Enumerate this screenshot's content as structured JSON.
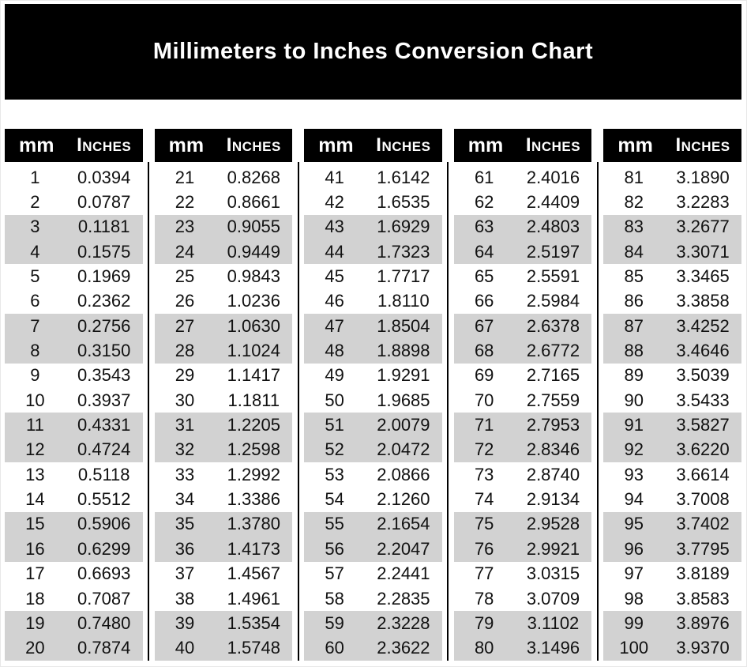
{
  "title": "Millimeters to Inches Conversion Chart",
  "header_labels": {
    "mm": "mm",
    "inches": "Inches"
  },
  "colors": {
    "banner_bg": "#000000",
    "banner_text": "#ffffff",
    "header_bg": "#000000",
    "header_text": "#ffffff",
    "stripe": "#d2d2d2",
    "divider": "#000000",
    "page_bg": "#ffffff",
    "text": "#111111"
  },
  "chart_data": {
    "type": "table",
    "title": "Millimeters to Inches Conversion Chart",
    "columns": [
      "mm",
      "Inches"
    ],
    "stripe_pattern": "rows grouped in pairs, every second pair shaded gray",
    "tables": [
      {
        "mm": [
          1,
          2,
          3,
          4,
          5,
          6,
          7,
          8,
          9,
          10,
          11,
          12,
          13,
          14,
          15,
          16,
          17,
          18,
          19,
          20
        ],
        "inches": [
          "0.0394",
          "0.0787",
          "0.1181",
          "0.1575",
          "0.1969",
          "0.2362",
          "0.2756",
          "0.3150",
          "0.3543",
          "0.3937",
          "0.4331",
          "0.4724",
          "0.5118",
          "0.5512",
          "0.5906",
          "0.6299",
          "0.6693",
          "0.7087",
          "0.7480",
          "0.7874"
        ]
      },
      {
        "mm": [
          21,
          22,
          23,
          24,
          25,
          26,
          27,
          28,
          29,
          30,
          31,
          32,
          33,
          34,
          35,
          36,
          37,
          38,
          39,
          40
        ],
        "inches": [
          "0.8268",
          "0.8661",
          "0.9055",
          "0.9449",
          "0.9843",
          "1.0236",
          "1.0630",
          "1.1024",
          "1.1417",
          "1.1811",
          "1.2205",
          "1.2598",
          "1.2992",
          "1.3386",
          "1.3780",
          "1.4173",
          "1.4567",
          "1.4961",
          "1.5354",
          "1.5748"
        ]
      },
      {
        "mm": [
          41,
          42,
          43,
          44,
          45,
          46,
          47,
          48,
          49,
          50,
          51,
          52,
          53,
          54,
          55,
          56,
          57,
          58,
          59,
          60
        ],
        "inches": [
          "1.6142",
          "1.6535",
          "1.6929",
          "1.7323",
          "1.7717",
          "1.8110",
          "1.8504",
          "1.8898",
          "1.9291",
          "1.9685",
          "2.0079",
          "2.0472",
          "2.0866",
          "2.1260",
          "2.1654",
          "2.2047",
          "2.2441",
          "2.2835",
          "2.3228",
          "2.3622"
        ]
      },
      {
        "mm": [
          61,
          62,
          63,
          64,
          65,
          66,
          67,
          68,
          69,
          70,
          71,
          72,
          73,
          74,
          75,
          76,
          77,
          78,
          79,
          80
        ],
        "inches": [
          "2.4016",
          "2.4409",
          "2.4803",
          "2.5197",
          "2.5591",
          "2.5984",
          "2.6378",
          "2.6772",
          "2.7165",
          "2.7559",
          "2.7953",
          "2.8346",
          "2.8740",
          "2.9134",
          "2.9528",
          "2.9921",
          "3.0315",
          "3.0709",
          "3.1102",
          "3.1496"
        ]
      },
      {
        "mm": [
          81,
          82,
          83,
          84,
          85,
          86,
          87,
          88,
          89,
          90,
          91,
          92,
          93,
          94,
          95,
          96,
          97,
          98,
          99,
          100
        ],
        "inches": [
          "3.1890",
          "3.2283",
          "3.2677",
          "3.3071",
          "3.3465",
          "3.3858",
          "3.4252",
          "3.4646",
          "3.5039",
          "3.5433",
          "3.5827",
          "3.6220",
          "3.6614",
          "3.7008",
          "3.7402",
          "3.7795",
          "3.8189",
          "3.8583",
          "3.8976",
          "3.9370"
        ]
      }
    ]
  }
}
